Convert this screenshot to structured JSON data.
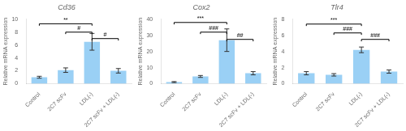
{
  "chart_data": [
    {
      "type": "bar",
      "title": "Cd36",
      "ylabel": "Relative mRNA expression",
      "categories": [
        "Control",
        "2C7 scFv",
        "LDL(-)",
        "2C7 scFv + LDL(-)"
      ],
      "values": [
        1.0,
        2.1,
        6.5,
        2.0
      ],
      "errors": [
        0.15,
        0.35,
        1.3,
        0.35
      ],
      "ylim": [
        0,
        10
      ],
      "yticks": [
        0,
        2,
        4,
        6,
        8,
        10
      ],
      "grid": false,
      "annotations": [
        {
          "from": "Control",
          "to": "LDL(-)",
          "y": 9.3,
          "label": "**"
        },
        {
          "from": "2C7 scFv",
          "to": "LDL(-)",
          "y": 8.0,
          "label": "#"
        },
        {
          "from": "LDL(-)",
          "to": "2C7 scFv + LDL(-)",
          "y": 7.0,
          "label": "#"
        }
      ]
    },
    {
      "type": "bar",
      "title": "Cox2",
      "ylabel": "Relative mRNA expression",
      "categories": [
        "Control",
        "2C7 scFv",
        "LDL(-)",
        "2C7 scFv + LDL(-)"
      ],
      "values": [
        1.0,
        4.5,
        27.0,
        6.5
      ],
      "errors": [
        0.3,
        0.6,
        7.0,
        1.0
      ],
      "ylim": [
        0,
        40
      ],
      "yticks": [
        0,
        10,
        20,
        30,
        40
      ],
      "grid": false,
      "annotations": [
        {
          "from": "Control",
          "to": "LDL(-)",
          "y": 38.0,
          "label": "***"
        },
        {
          "from": "2C7 scFv",
          "to": "LDL(-)",
          "y": 32.0,
          "label": "###"
        },
        {
          "from": "LDL(-)",
          "to": "2C7 scFv + LDL(-)",
          "y": 27.5,
          "label": "##"
        }
      ]
    },
    {
      "type": "bar",
      "title": "Tlr4",
      "ylabel": "Relative mRNA expression",
      "categories": [
        "Control",
        "2C7 scFv",
        "LDL(-)",
        "2C7 scFv + LDL(-)"
      ],
      "values": [
        1.3,
        1.1,
        4.2,
        1.5
      ],
      "errors": [
        0.2,
        0.15,
        0.35,
        0.2
      ],
      "ylim": [
        0,
        8
      ],
      "yticks": [
        0,
        2,
        4,
        6,
        8
      ],
      "grid": false,
      "annotations": [
        {
          "from": "Control",
          "to": "LDL(-)",
          "y": 7.4,
          "label": "***"
        },
        {
          "from": "2C7 scFv",
          "to": "LDL(-)",
          "y": 6.3,
          "label": "###"
        },
        {
          "from": "LDL(-)",
          "to": "2C7 scFv + LDL(-)",
          "y": 5.5,
          "label": "###"
        }
      ]
    }
  ]
}
